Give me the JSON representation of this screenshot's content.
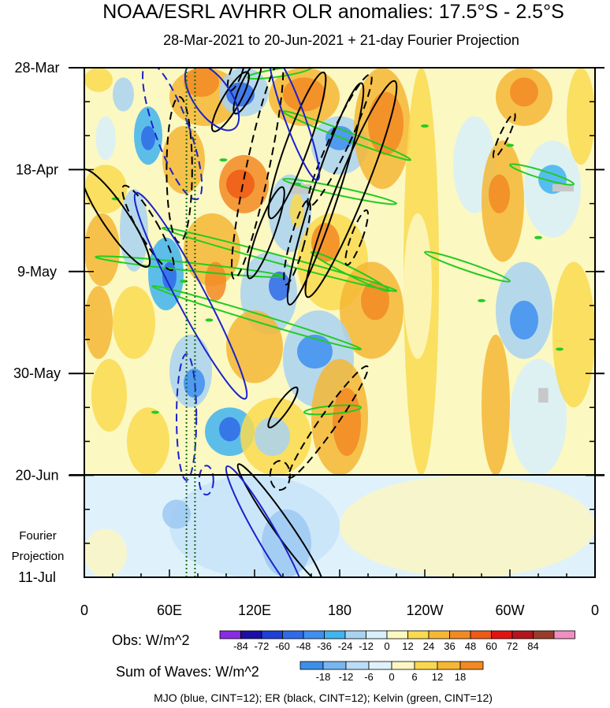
{
  "chart_data": {
    "type": "heatmap",
    "title": "NOAA/ESRL AVHRR OLR anomalies: 17.5°S - 2.5°S",
    "subtitle": "28-Mar-2021 to 20-Jun-2021 + 21-day Fourier Projection",
    "x_ticks": [
      "0",
      "60E",
      "120E",
      "180",
      "120W",
      "60W",
      "0"
    ],
    "x_tick_lon": [
      0,
      60,
      120,
      180,
      240,
      300,
      360
    ],
    "y_ticks": [
      "28-Mar",
      "18-Apr",
      "9-May",
      "30-May",
      "20-Jun",
      "11-Jul"
    ],
    "y_tick_day": [
      0,
      21,
      42,
      63,
      84,
      105
    ],
    "projection_label": [
      "Fourier",
      "Projection"
    ],
    "obs_end_day": 84,
    "dotted_lon": [
      72,
      78
    ],
    "obs_legend": {
      "label": "Obs: W/m^2",
      "ticks": [
        "-84",
        "-72",
        "-60",
        "-48",
        "-36",
        "-24",
        "-12",
        "0",
        "12",
        "24",
        "36",
        "48",
        "60",
        "72",
        "84"
      ],
      "colors": [
        "#8a2be2",
        "#1c0fa3",
        "#1f3fd6",
        "#2f6be8",
        "#3e8ff0",
        "#40b4ee",
        "#a9d2f2",
        "#d7f0fb",
        "#fbf8c2",
        "#f9da50",
        "#f5b735",
        "#f28a23",
        "#ee5a18",
        "#e21411",
        "#b3151b",
        "#9a3c2a",
        "#f08fbf"
      ]
    },
    "waves_legend": {
      "label": "Sum of Waves: W/m^2",
      "ticks": [
        "-18",
        "-12",
        "-6",
        "0",
        "6",
        "12",
        "18"
      ],
      "colors": [
        "#3d8fe9",
        "#7ab6ee",
        "#bcdcf5",
        "#dff2fb",
        "#fbf6c3",
        "#f9d752",
        "#f5b735",
        "#f28a23"
      ]
    },
    "footnote": "MJO (blue, CINT=12); ER (black, CINT=12); Kelvin (green, CINT=12)",
    "contour_colors": {
      "mjo": "#1a22cc",
      "er": "#000000",
      "kelvin": "#22cc22",
      "gray": "#c8c8c8"
    },
    "cells": [
      {
        "lon0": 0,
        "lon1": 20,
        "d0": 0,
        "d1": 5,
        "v": 12
      },
      {
        "lon0": 20,
        "lon1": 35,
        "d0": 2,
        "d1": 9,
        "v": -24
      },
      {
        "lon0": 8,
        "lon1": 22,
        "d0": 10,
        "d1": 19,
        "v": -12
      },
      {
        "lon0": 35,
        "lon1": 55,
        "d0": 8,
        "d1": 20,
        "v": -36
      },
      {
        "lon0": 40,
        "lon1": 50,
        "d0": 12,
        "d1": 17,
        "v": -60
      },
      {
        "lon0": 0,
        "lon1": 30,
        "d0": 20,
        "d1": 30,
        "v": 12
      },
      {
        "lon0": 0,
        "lon1": 25,
        "d0": 30,
        "d1": 45,
        "v": 24
      },
      {
        "lon0": 25,
        "lon1": 45,
        "d0": 25,
        "d1": 42,
        "v": -24
      },
      {
        "lon0": 45,
        "lon1": 70,
        "d0": 35,
        "d1": 50,
        "v": -36
      },
      {
        "lon0": 55,
        "lon1": 65,
        "d0": 40,
        "d1": 46,
        "v": -60
      },
      {
        "lon0": 0,
        "lon1": 20,
        "d0": 45,
        "d1": 60,
        "v": 24
      },
      {
        "lon0": 20,
        "lon1": 50,
        "d0": 45,
        "d1": 60,
        "v": 12
      },
      {
        "lon0": 5,
        "lon1": 30,
        "d0": 60,
        "d1": 75,
        "v": 12
      },
      {
        "lon0": 60,
        "lon1": 90,
        "d0": 55,
        "d1": 70,
        "v": -24
      },
      {
        "lon0": 70,
        "lon1": 85,
        "d0": 62,
        "d1": 68,
        "v": -48
      },
      {
        "lon0": 30,
        "lon1": 60,
        "d0": 70,
        "d1": 84,
        "v": 12
      },
      {
        "lon0": 85,
        "lon1": 120,
        "d0": 70,
        "d1": 80,
        "v": -36
      },
      {
        "lon0": 95,
        "lon1": 110,
        "d0": 72,
        "d1": 77,
        "v": -60
      },
      {
        "lon0": 60,
        "lon1": 110,
        "d0": 0,
        "d1": 12,
        "v": 24
      },
      {
        "lon0": 70,
        "lon1": 95,
        "d0": 0,
        "d1": 6,
        "v": 36
      },
      {
        "lon0": 95,
        "lon1": 130,
        "d0": 0,
        "d1": 10,
        "v": -24
      },
      {
        "lon0": 100,
        "lon1": 120,
        "d0": 3,
        "d1": 8,
        "v": -60
      },
      {
        "lon0": 130,
        "lon1": 180,
        "d0": 0,
        "d1": 12,
        "v": 24
      },
      {
        "lon0": 140,
        "lon1": 170,
        "d0": 2,
        "d1": 9,
        "v": 36
      },
      {
        "lon0": 160,
        "lon1": 200,
        "d0": 10,
        "d1": 22,
        "v": -24
      },
      {
        "lon0": 170,
        "lon1": 190,
        "d0": 12,
        "d1": 17,
        "v": -48
      },
      {
        "lon0": 55,
        "lon1": 85,
        "d0": 12,
        "d1": 26,
        "v": 24
      },
      {
        "lon0": 95,
        "lon1": 130,
        "d0": 18,
        "d1": 30,
        "v": 36
      },
      {
        "lon0": 100,
        "lon1": 120,
        "d0": 21,
        "d1": 27,
        "v": 48
      },
      {
        "lon0": 130,
        "lon1": 160,
        "d0": 22,
        "d1": 38,
        "v": -24
      },
      {
        "lon0": 145,
        "lon1": 155,
        "d0": 26,
        "d1": 33,
        "v": 12
      },
      {
        "lon0": 190,
        "lon1": 230,
        "d0": 0,
        "d1": 25,
        "v": 24
      },
      {
        "lon0": 200,
        "lon1": 225,
        "d0": 5,
        "d1": 18,
        "v": 36
      },
      {
        "lon0": 70,
        "lon1": 110,
        "d0": 30,
        "d1": 45,
        "v": 24
      },
      {
        "lon0": 85,
        "lon1": 100,
        "d0": 40,
        "d1": 48,
        "v": 36
      },
      {
        "lon0": 110,
        "lon1": 150,
        "d0": 38,
        "d1": 55,
        "v": -24
      },
      {
        "lon0": 130,
        "lon1": 145,
        "d0": 42,
        "d1": 48,
        "v": -60
      },
      {
        "lon0": 150,
        "lon1": 200,
        "d0": 30,
        "d1": 50,
        "v": 12
      },
      {
        "lon0": 160,
        "lon1": 180,
        "d0": 32,
        "d1": 40,
        "v": 36
      },
      {
        "lon0": 180,
        "lon1": 225,
        "d0": 40,
        "d1": 60,
        "v": 24
      },
      {
        "lon0": 195,
        "lon1": 215,
        "d0": 44,
        "d1": 52,
        "v": 36
      },
      {
        "lon0": 100,
        "lon1": 140,
        "d0": 50,
        "d1": 65,
        "v": 24
      },
      {
        "lon0": 140,
        "lon1": 190,
        "d0": 50,
        "d1": 70,
        "v": -24
      },
      {
        "lon0": 150,
        "lon1": 175,
        "d0": 55,
        "d1": 62,
        "v": -48
      },
      {
        "lon0": 160,
        "lon1": 200,
        "d0": 60,
        "d1": 84,
        "v": 24
      },
      {
        "lon0": 175,
        "lon1": 195,
        "d0": 66,
        "d1": 80,
        "v": 36
      },
      {
        "lon0": 110,
        "lon1": 160,
        "d0": 68,
        "d1": 84,
        "v": 12
      },
      {
        "lon0": 120,
        "lon1": 145,
        "d0": 72,
        "d1": 80,
        "v": -24
      },
      {
        "lon0": 225,
        "lon1": 250,
        "d0": 0,
        "d1": 84,
        "v": 12
      },
      {
        "lon0": 225,
        "lon1": 245,
        "d0": 30,
        "d1": 60,
        "v": 0
      },
      {
        "lon0": 260,
        "lon1": 290,
        "d0": 10,
        "d1": 30,
        "v": -12
      },
      {
        "lon0": 290,
        "lon1": 330,
        "d0": 0,
        "d1": 12,
        "v": 24
      },
      {
        "lon0": 300,
        "lon1": 320,
        "d0": 2,
        "d1": 8,
        "v": 36
      },
      {
        "lon0": 280,
        "lon1": 310,
        "d0": 15,
        "d1": 40,
        "v": 24
      },
      {
        "lon0": 285,
        "lon1": 300,
        "d0": 22,
        "d1": 30,
        "v": 36
      },
      {
        "lon0": 310,
        "lon1": 350,
        "d0": 15,
        "d1": 35,
        "v": -12
      },
      {
        "lon0": 320,
        "lon1": 340,
        "d0": 20,
        "d1": 26,
        "v": -36
      },
      {
        "lon0": 290,
        "lon1": 330,
        "d0": 40,
        "d1": 60,
        "v": -24
      },
      {
        "lon0": 300,
        "lon1": 320,
        "d0": 48,
        "d1": 56,
        "v": -48
      },
      {
        "lon0": 280,
        "lon1": 300,
        "d0": 55,
        "d1": 84,
        "v": 24
      },
      {
        "lon0": 300,
        "lon1": 340,
        "d0": 60,
        "d1": 84,
        "v": -12
      },
      {
        "lon0": 330,
        "lon1": 360,
        "d0": 40,
        "d1": 70,
        "v": 12
      },
      {
        "lon0": 340,
        "lon1": 360,
        "d0": 0,
        "d1": 20,
        "v": 12
      },
      {
        "lon0": 60,
        "lon1": 180,
        "d0": 84,
        "d1": 105,
        "v": -6
      },
      {
        "lon0": 55,
        "lon1": 75,
        "d0": 89,
        "d1": 95,
        "v": -12
      },
      {
        "lon0": 125,
        "lon1": 160,
        "d0": 91,
        "d1": 105,
        "v": -12
      },
      {
        "lon0": 180,
        "lon1": 360,
        "d0": 84,
        "d1": 105,
        "v": 6
      },
      {
        "lon0": 0,
        "lon1": 30,
        "d0": 95,
        "d1": 105,
        "v": 6
      }
    ],
    "gray_patches": [
      {
        "lon0": 145,
        "lon1": 160,
        "d0": 24,
        "d1": 26
      },
      {
        "lon0": 330,
        "lon1": 345,
        "d0": 24,
        "d1": 25.5
      },
      {
        "lon0": 320,
        "lon1": 327,
        "d0": 66,
        "d1": 69
      }
    ],
    "er_contours": [
      {
        "lon": 22,
        "day": 31,
        "rlon": 9,
        "rday": 12,
        "rot": -34,
        "dashed": false
      },
      {
        "lon": 45,
        "day": 33,
        "rlon": 7,
        "rday": 10,
        "rot": -30,
        "dashed": true
      },
      {
        "lon": 67,
        "day": 21,
        "rlon": 9,
        "rday": 15,
        "rot": 0,
        "dashed": true
      },
      {
        "lon": 103,
        "day": 7,
        "rlon": 6,
        "rday": 7,
        "rot": 30,
        "dashed": false
      },
      {
        "lon": 115,
        "day": 4,
        "rlon": 5,
        "rday": 6,
        "rot": 25,
        "dashed": false
      },
      {
        "lon": 107,
        "day": 1,
        "rlon": 4,
        "rday": 4,
        "rot": 20,
        "dashed": true
      },
      {
        "lon": 122,
        "day": 21,
        "rlon": 8,
        "rday": 23,
        "rot": 12,
        "dashed": true
      },
      {
        "lon": 150,
        "day": 16,
        "rlon": 8,
        "rday": 16,
        "rot": 20,
        "dashed": false
      },
      {
        "lon": 128,
        "day": 34,
        "rlon": 6,
        "rday": 10,
        "rot": 20,
        "dashed": false
      },
      {
        "lon": 150,
        "day": 36,
        "rlon": 5,
        "rday": 9,
        "rot": 15,
        "dashed": true
      },
      {
        "lon": 170,
        "day": 26,
        "rlon": 9,
        "rday": 24,
        "rot": 18,
        "dashed": false
      },
      {
        "lon": 188,
        "day": 25,
        "rlon": 10,
        "rday": 24,
        "rot": 22,
        "dashed": false
      },
      {
        "lon": 180,
        "day": 15,
        "rlon": 7,
        "rday": 15,
        "rot": 25,
        "dashed": true
      },
      {
        "lon": 192,
        "day": 35,
        "rlon": 4,
        "rday": 6,
        "rot": 20,
        "dashed": true
      },
      {
        "lon": 140,
        "day": 70,
        "rlon": 4,
        "rday": 5,
        "rot": 35,
        "dashed": false
      },
      {
        "lon": 172,
        "day": 73,
        "rlon": 6,
        "rday": 14,
        "rot": 35,
        "dashed": true
      },
      {
        "lon": 138,
        "day": 84,
        "rlon": 7,
        "rday": 3,
        "rot": 0,
        "dashed": true
      },
      {
        "lon": 296,
        "day": 14,
        "rlon": 3,
        "rday": 5,
        "rot": 25,
        "dashed": true
      },
      {
        "lon": 138,
        "day": 94,
        "rlon": 6,
        "rday": 15,
        "rot": -35,
        "dashed": false
      }
    ],
    "mjo_contours": [
      {
        "lon": 72,
        "day": 72,
        "rlon": 7,
        "rday": 13,
        "rot": 0,
        "dashed": true
      },
      {
        "lon": 62,
        "day": 13,
        "rlon": 12,
        "rday": 15,
        "rot": -20,
        "dashed": true
      },
      {
        "lon": 75,
        "day": 47,
        "rlon": 10,
        "rday": 24,
        "rot": -28,
        "dashed": false
      },
      {
        "lon": 90,
        "day": 6,
        "rlon": 13,
        "rday": 8,
        "rot": -35,
        "dashed": false
      },
      {
        "lon": 148,
        "day": 10,
        "rlon": 7,
        "rday": 14,
        "rot": -20,
        "dashed": false
      },
      {
        "lon": 86,
        "day": 85,
        "rlon": 5,
        "rday": 3,
        "rot": 0,
        "dashed": true
      },
      {
        "lon": 128,
        "day": 96,
        "rlon": 7,
        "rday": 16,
        "rot": -30,
        "dashed": false
      }
    ],
    "kelvin_bands": [
      {
        "lon0": 115,
        "day0": 2,
        "lon1": 160,
        "day1": 0
      },
      {
        "lon0": 140,
        "day0": 9,
        "lon1": 230,
        "day1": 19
      },
      {
        "lon0": 140,
        "day0": 23,
        "lon1": 220,
        "day1": 28
      },
      {
        "lon0": 55,
        "day0": 33,
        "lon1": 220,
        "day1": 46
      },
      {
        "lon0": 8,
        "day0": 39,
        "lon1": 140,
        "day1": 43
      },
      {
        "lon0": 48,
        "day0": 45,
        "lon1": 195,
        "day1": 58
      },
      {
        "lon0": 160,
        "day0": 38,
        "lon1": 215,
        "day1": 46
      },
      {
        "lon0": 240,
        "day0": 38,
        "lon1": 300,
        "day1": 44
      },
      {
        "lon0": 300,
        "day0": 20,
        "lon1": 345,
        "day1": 24
      },
      {
        "lon0": 155,
        "day0": 71,
        "lon1": 195,
        "day1": 70
      }
    ],
    "kelvin_dashes": [
      {
        "lon": 22,
        "day": 27
      },
      {
        "lon": 98,
        "day": 19
      },
      {
        "lon": 70,
        "day": 44
      },
      {
        "lon": 88,
        "day": 52
      },
      {
        "lon": 50,
        "day": 71
      },
      {
        "lon": 300,
        "day": 16
      },
      {
        "lon": 320,
        "day": 35
      },
      {
        "lon": 280,
        "day": 48
      },
      {
        "lon": 335,
        "day": 58
      },
      {
        "lon": 150,
        "day": 24
      },
      {
        "lon": 240,
        "day": 12
      }
    ]
  }
}
